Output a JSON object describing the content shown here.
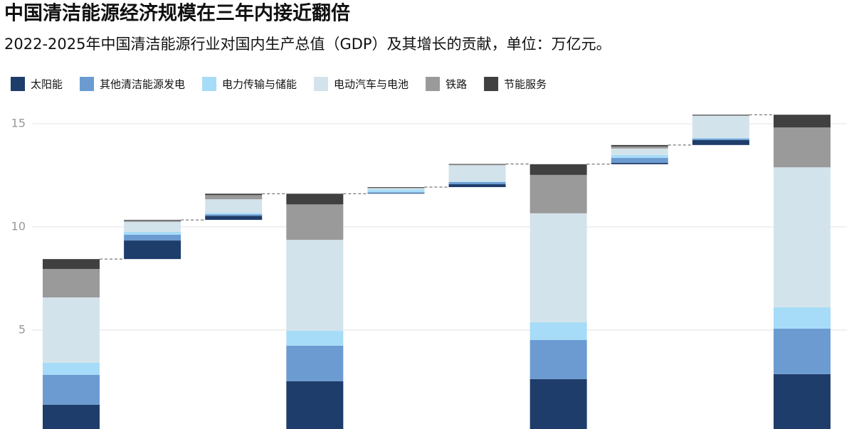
{
  "chart_data": {
    "type": "waterfall",
    "title": "中国清洁能源经济规模在三年内接近翻倍",
    "subtitle": "2022-2025年中国清洁能源行业对国内生产总值（GDP）及其增长的贡献，单位：万亿元。",
    "categories": [
      null,
      null,
      null,
      null,
      null,
      null,
      null,
      null,
      null,
      null
    ],
    "series": [
      {
        "name": "太阳能",
        "color": "#1f3d6b",
        "values": [
          1.38,
          0.9,
          0.2,
          2.52,
          0.03,
          0.14,
          2.62,
          0.07,
          0.24,
          2.86
        ]
      },
      {
        "name": "其他清洁能源发电",
        "color": "#6b9bd1",
        "values": [
          1.45,
          0.28,
          0.07,
          1.72,
          0.03,
          0.1,
          1.9,
          0.24,
          0.07,
          2.21
        ]
      },
      {
        "name": "电力传输与储能",
        "color": "#a6dcf7",
        "values": [
          0.58,
          0.14,
          0.07,
          0.72,
          0.15,
          0.03,
          0.86,
          0.14,
          0.03,
          1.03
        ]
      },
      {
        "name": "电动汽车与电池",
        "color": "#d3e3ec",
        "values": [
          3.17,
          0.48,
          0.66,
          4.41,
          0.05,
          0.79,
          5.28,
          0.31,
          1.07,
          6.79
        ]
      },
      {
        "name": "铁路",
        "color": "#9a9a9a",
        "values": [
          1.38,
          0.07,
          0.2,
          1.72,
          0.03,
          0.03,
          1.86,
          0.1,
          0.03,
          1.93
        ]
      },
      {
        "name": "节能服务",
        "color": "#404040",
        "values": [
          0.48,
          0.03,
          0.07,
          0.52,
          0.03,
          0.03,
          0.52,
          0.07,
          0.03,
          0.62
        ]
      }
    ],
    "ylim": [
      0.2,
      15.8
    ],
    "yticks": [
      5,
      10,
      15
    ],
    "grid": true,
    "legend": "top-left"
  }
}
